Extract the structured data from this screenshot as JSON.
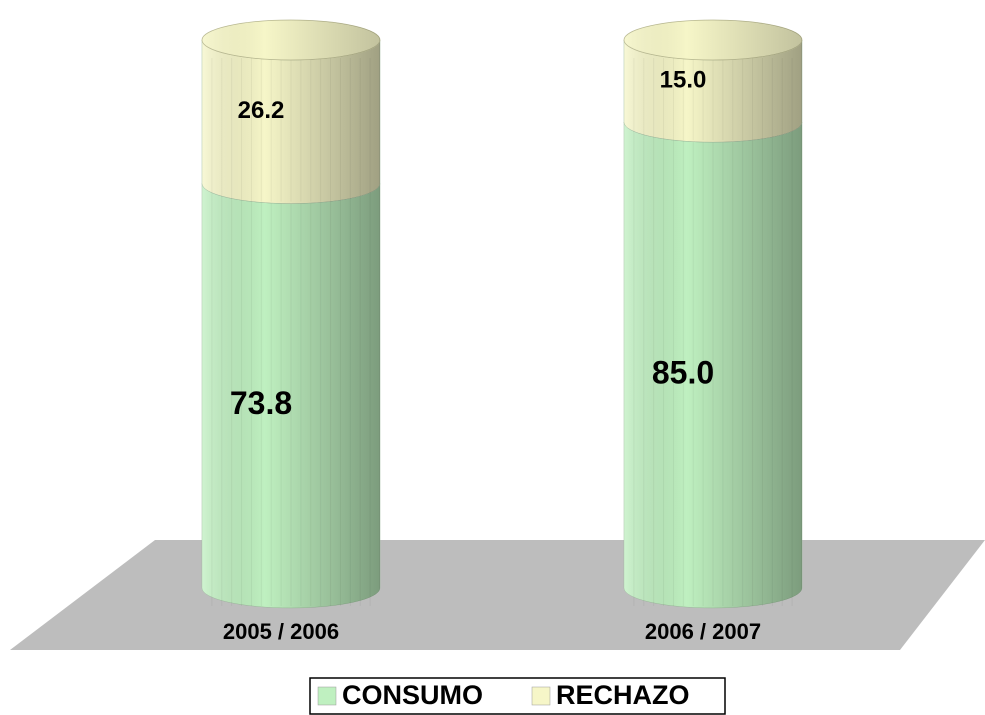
{
  "chart_data": {
    "type": "stacked-cylinder",
    "categories": [
      "2005 / 2006",
      "2006 / 2007"
    ],
    "series": [
      {
        "name": "CONSUMO",
        "color": "#bff0c0",
        "values": [
          73.8,
          85.0
        ],
        "value_labels": [
          "73.8",
          "85.0"
        ]
      },
      {
        "name": "RECHAZO",
        "color": "#f6f6c8",
        "values": [
          26.2,
          15.0
        ],
        "value_labels": [
          "26.2",
          "15.0"
        ]
      }
    ],
    "legend": "bottom"
  }
}
